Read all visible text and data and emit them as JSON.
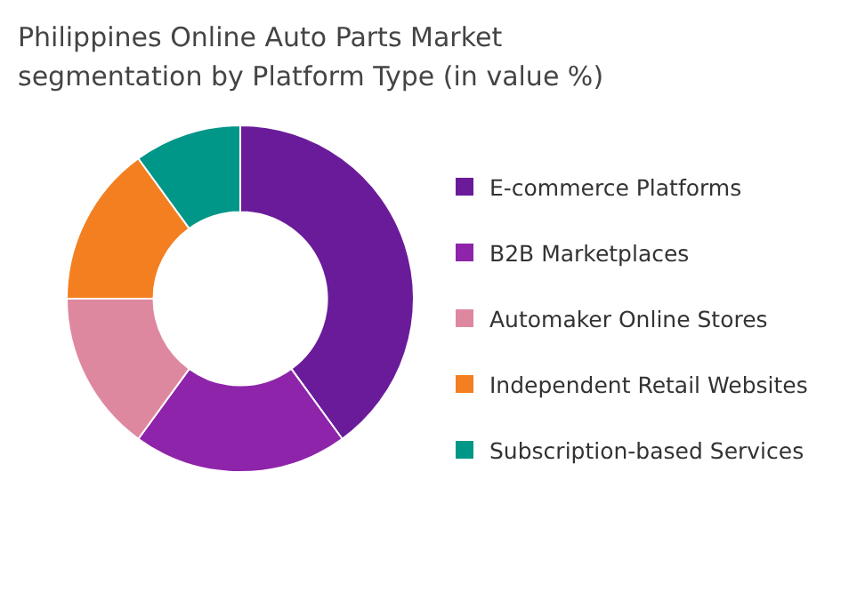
{
  "chart_data": {
    "type": "donut",
    "title": "Philippines Online Auto Parts Market segmentation by Platform Type (in value %)",
    "categories": [
      "E-commerce Platforms",
      "B2B Marketplaces",
      "Automaker Online Stores",
      "Independent Retail Websites",
      "Subscription-based Services"
    ],
    "values": [
      40,
      20,
      15,
      15,
      10
    ],
    "colors": [
      "#6a1b9a",
      "#8e24aa",
      "#de88a0",
      "#f47f20",
      "#009688"
    ],
    "legend": "right"
  }
}
